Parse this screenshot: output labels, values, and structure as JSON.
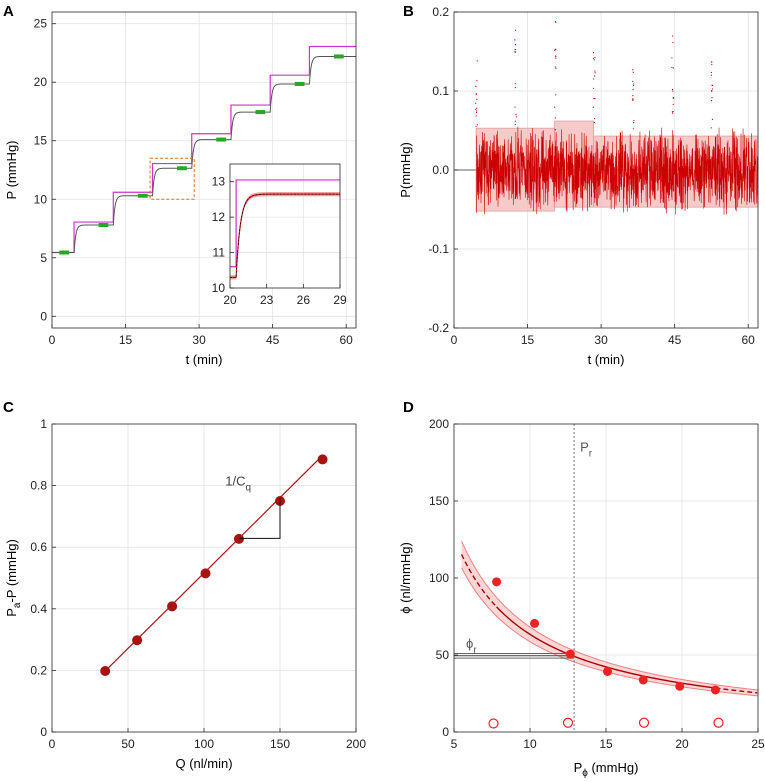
{
  "chart_data": [
    {
      "panel": "A",
      "type": "line",
      "xlabel": "t (min)",
      "ylabel": "P (mmHg)",
      "xlim": [
        0,
        62
      ],
      "ylim": [
        -1,
        26
      ],
      "xticks": [
        "0",
        "15",
        "30",
        "45",
        "60"
      ],
      "yticks": [
        "0",
        "5",
        "10",
        "15",
        "20",
        "25"
      ],
      "grid": true,
      "steps": [
        {
          "t_start": 0,
          "t_end": 4.5,
          "p": 5.45,
          "pa": 5.45
        },
        {
          "t_start": 4.5,
          "t_end": 12.5,
          "p": 7.8,
          "pa": 8.05
        },
        {
          "t_start": 12.5,
          "t_end": 20.5,
          "p": 10.3,
          "pa": 10.6
        },
        {
          "t_start": 20.5,
          "t_end": 28.5,
          "p": 12.65,
          "pa": 13.05
        },
        {
          "t_start": 28.5,
          "t_end": 36.5,
          "p": 15.1,
          "pa": 15.6
        },
        {
          "t_start": 36.5,
          "t_end": 44.5,
          "p": 17.45,
          "pa": 18.05
        },
        {
          "t_start": 44.5,
          "t_end": 52.5,
          "p": 19.85,
          "pa": 20.6
        },
        {
          "t_start": 52.5,
          "t_end": 62,
          "p": 22.2,
          "pa": 23.05
        }
      ],
      "green_markers": [
        {
          "t_start": 1.5,
          "t_end": 3.5,
          "p": 5.45
        },
        {
          "t_start": 9.5,
          "t_end": 11.5,
          "p": 7.8
        },
        {
          "t_start": 17.5,
          "t_end": 19.5,
          "p": 10.3
        },
        {
          "t_start": 25.5,
          "t_end": 27.5,
          "p": 12.65
        },
        {
          "t_start": 33.5,
          "t_end": 35.5,
          "p": 15.1
        },
        {
          "t_start": 41.5,
          "t_end": 43.5,
          "p": 17.45
        },
        {
          "t_start": 49.5,
          "t_end": 51.5,
          "p": 19.85
        },
        {
          "t_start": 57.5,
          "t_end": 59.5,
          "p": 22.2
        }
      ],
      "zoom_box": {
        "t": [
          20,
          29
        ],
        "p": [
          10,
          13.5
        ]
      },
      "series_colors": {
        "pa": "#cc33cc",
        "p": "#555555",
        "marker": "#22aa22",
        "box": "#e07020"
      },
      "inset": {
        "xlim": [
          20,
          29
        ],
        "ylim": [
          10,
          13.5
        ],
        "xticks": [
          "20",
          "23",
          "26",
          "29"
        ],
        "yticks": [
          "10",
          "11",
          "12",
          "13"
        ]
      }
    },
    {
      "panel": "B",
      "type": "line",
      "xlabel": "t (min)",
      "ylabel": "P(mmHg)",
      "xlim": [
        0,
        62
      ],
      "ylim": [
        -0.2,
        0.2
      ],
      "xticks": [
        "0",
        "15",
        "30",
        "45",
        "60"
      ],
      "yticks": [
        "-0.2",
        "-0.1",
        "0.0",
        "0.1",
        "0.2"
      ],
      "grid": true,
      "band": [
        {
          "t_start": 4.5,
          "t_end": 20.5,
          "upper": 0.053,
          "lower": -0.052
        },
        {
          "t_start": 20.5,
          "t_end": 28.5,
          "upper": 0.062,
          "lower": -0.047
        },
        {
          "t_start": 28.5,
          "t_end": 62,
          "upper": 0.043,
          "lower": -0.047
        }
      ],
      "spikes_t": [
        4.6,
        12.6,
        20.6,
        28.6,
        36.6,
        44.6,
        52.6
      ],
      "spike_tops": [
        0.14,
        0.18,
        0.19,
        0.15,
        0.13,
        0.17,
        0.14
      ],
      "color": "#cc0000"
    },
    {
      "panel": "C",
      "type": "scatter",
      "xlabel": "Q (nl/min)",
      "ylabel": "P",
      "ylabel_sub": "a",
      "ylabel_rest": "-P (mmHg)",
      "xlim": [
        0,
        200
      ],
      "ylim": [
        0,
        1
      ],
      "xticks": [
        "0",
        "50",
        "100",
        "150",
        "200"
      ],
      "yticks": [
        "0",
        "0.2",
        "0.4",
        "0.6",
        "0.8",
        "1"
      ],
      "grid": true,
      "x": [
        35,
        56,
        79,
        101,
        123,
        150,
        178
      ],
      "y": [
        0.198,
        0.298,
        0.408,
        0.515,
        0.627,
        0.75,
        0.885
      ],
      "fit": {
        "slope": 0.004895,
        "intercept": 0.0267,
        "x_range": [
          35,
          178
        ]
      },
      "annotation": "1/C",
      "annotation_sub": "q",
      "color": "#aa1111"
    },
    {
      "panel": "D",
      "type": "scatter",
      "xlabel": "P",
      "xlabel_sub": "ϕ",
      "xlabel_rest": " (mmHg)",
      "ylabel": "ϕ (nl/mmHg)",
      "xlim": [
        5,
        25
      ],
      "ylim": [
        0,
        200
      ],
      "xticks": [
        "5",
        "10",
        "15",
        "20",
        "25"
      ],
      "yticks": [
        "0",
        "50",
        "100",
        "150",
        "200"
      ],
      "grid": true,
      "filled_points": {
        "x": [
          7.8,
          10.3,
          12.65,
          15.1,
          17.45,
          19.85,
          22.2
        ],
        "y": [
          97.5,
          70.5,
          50.5,
          39.3,
          33.8,
          29.7,
          27.3
        ]
      },
      "open_points": {
        "x": [
          7.6,
          12.5,
          17.5,
          22.4
        ],
        "y": [
          5.5,
          6,
          6,
          6
        ]
      },
      "fit_model": "phi = 634 / P",
      "band_factor": 0.075,
      "Pr": 12.9,
      "Pr_label": "P",
      "Pr_label_sub": "r",
      "phir": 49.5,
      "phir_label": "ϕ",
      "phir_label_sub": "r",
      "color": "#cc1111",
      "band_color": "#f08080"
    }
  ],
  "panel_labels": [
    "A",
    "B",
    "C",
    "D"
  ]
}
